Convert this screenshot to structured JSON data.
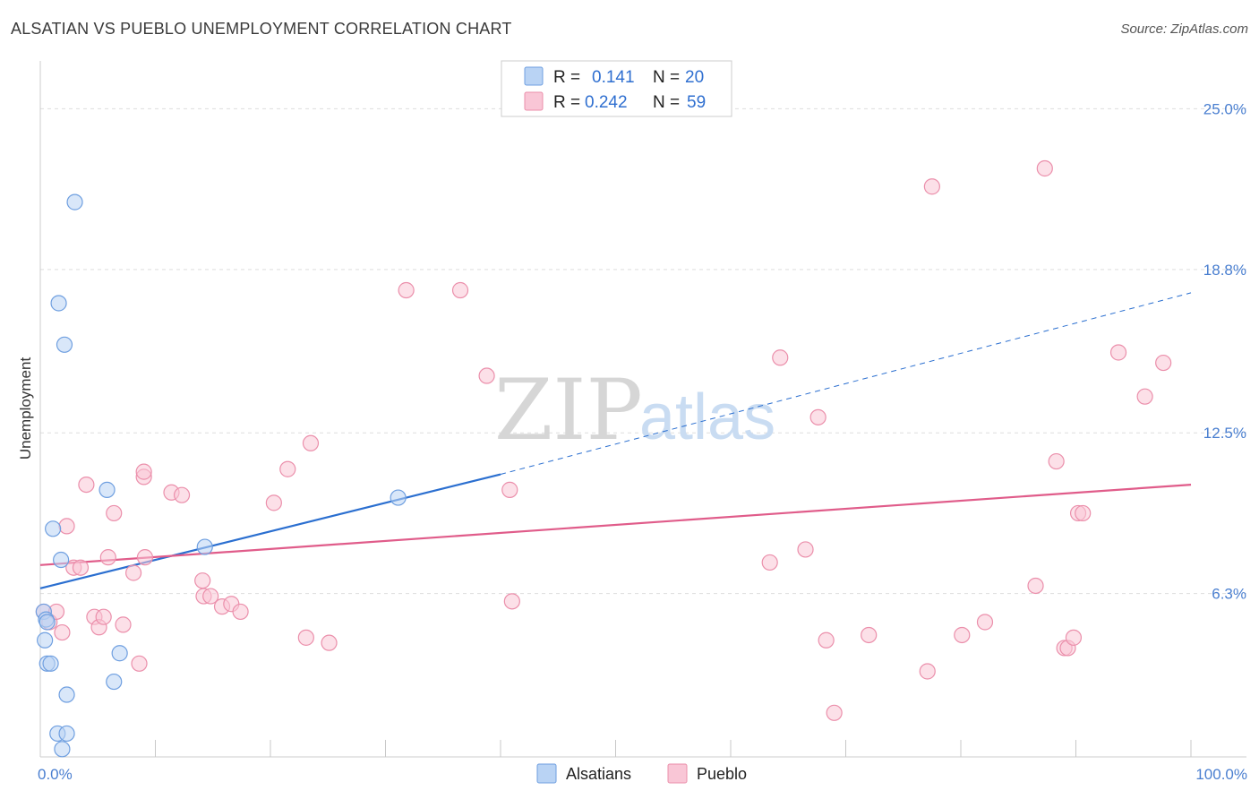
{
  "title": "ALSATIAN VS PUEBLO UNEMPLOYMENT CORRELATION CHART",
  "source": "Source: ZipAtlas.com",
  "watermark": {
    "part1": "ZIP",
    "part2": "atlas"
  },
  "colors": {
    "alsatian_fill": "#b9d3f4",
    "alsatian_stroke": "#6f9fe0",
    "alsatian_line": "#2b6fd0",
    "pueblo_fill": "#f9c6d6",
    "pueblo_stroke": "#eb8fab",
    "pueblo_line": "#e05c8a",
    "grid": "#dddddd",
    "axis": "#cccccc"
  },
  "legend": {
    "rows": [
      {
        "r_label": "R =",
        "r_value": "0.141",
        "n_label": "N =",
        "n_value": "20"
      },
      {
        "r_label": "R =",
        "r_value": "0.242",
        "n_label": "N =",
        "n_value": "59"
      }
    ]
  },
  "chart_data": {
    "type": "scatter",
    "title": "ALSATIAN VS PUEBLO UNEMPLOYMENT CORRELATION CHART",
    "xlabel": "",
    "ylabel": "Unemployment",
    "xlim": [
      0,
      100
    ],
    "ylim": [
      0,
      26.5
    ],
    "x_tick_labels": [
      {
        "value": 0,
        "label": "0.0%"
      },
      {
        "value": 100,
        "label": "100.0%"
      }
    ],
    "y_ticks": [
      {
        "value": 6.3,
        "label": "6.3%"
      },
      {
        "value": 12.5,
        "label": "12.5%"
      },
      {
        "value": 18.8,
        "label": "18.8%"
      },
      {
        "value": 25.0,
        "label": "25.0%"
      }
    ],
    "legend_position": "top-center",
    "series": [
      {
        "name": "Alsatians",
        "r": 0.141,
        "n": 20,
        "points": [
          [
            0.3,
            5.6
          ],
          [
            0.5,
            5.3
          ],
          [
            0.6,
            5.2
          ],
          [
            0.4,
            4.5
          ],
          [
            0.6,
            3.6
          ],
          [
            0.9,
            3.6
          ],
          [
            1.5,
            0.9
          ],
          [
            2.3,
            0.9
          ],
          [
            1.9,
            0.3
          ],
          [
            2.3,
            2.4
          ],
          [
            6.4,
            2.9
          ],
          [
            6.9,
            4.0
          ],
          [
            1.1,
            8.8
          ],
          [
            1.8,
            7.6
          ],
          [
            5.8,
            10.3
          ],
          [
            14.3,
            8.1
          ],
          [
            31.1,
            10.0
          ],
          [
            3.0,
            21.4
          ],
          [
            1.6,
            17.5
          ],
          [
            2.1,
            15.9
          ]
        ],
        "trend": {
          "x0": 0,
          "y0": 6.5,
          "x1": 40,
          "y1": 10.9,
          "dashed_to_x": 100,
          "dashed_to_y": 17.9
        }
      },
      {
        "name": "Pueblo",
        "r": 0.242,
        "n": 59,
        "points": [
          [
            0.3,
            5.6
          ],
          [
            0.8,
            5.2
          ],
          [
            1.4,
            5.6
          ],
          [
            1.9,
            4.8
          ],
          [
            2.3,
            8.9
          ],
          [
            2.9,
            7.3
          ],
          [
            3.5,
            7.3
          ],
          [
            4.0,
            10.5
          ],
          [
            4.7,
            5.4
          ],
          [
            5.1,
            5.0
          ],
          [
            5.5,
            5.4
          ],
          [
            5.9,
            7.7
          ],
          [
            6.4,
            9.4
          ],
          [
            7.2,
            5.1
          ],
          [
            8.1,
            7.1
          ],
          [
            8.6,
            3.6
          ],
          [
            9.1,
            7.7
          ],
          [
            9.0,
            10.8
          ],
          [
            9.0,
            11.0
          ],
          [
            11.4,
            10.2
          ],
          [
            12.3,
            10.1
          ],
          [
            14.1,
            6.8
          ],
          [
            14.2,
            6.2
          ],
          [
            14.8,
            6.2
          ],
          [
            15.8,
            5.8
          ],
          [
            16.6,
            5.9
          ],
          [
            17.4,
            5.6
          ],
          [
            20.3,
            9.8
          ],
          [
            21.5,
            11.1
          ],
          [
            23.1,
            4.6
          ],
          [
            23.5,
            12.1
          ],
          [
            25.1,
            4.4
          ],
          [
            31.8,
            18.0
          ],
          [
            36.5,
            18.0
          ],
          [
            38.8,
            14.7
          ],
          [
            40.8,
            10.3
          ],
          [
            41.0,
            6.0
          ],
          [
            63.4,
            7.5
          ],
          [
            64.3,
            15.4
          ],
          [
            66.5,
            8.0
          ],
          [
            67.6,
            13.1
          ],
          [
            68.3,
            4.5
          ],
          [
            69.0,
            1.7
          ],
          [
            72.0,
            4.7
          ],
          [
            77.1,
            3.3
          ],
          [
            77.5,
            22.0
          ],
          [
            80.1,
            4.7
          ],
          [
            82.1,
            5.2
          ],
          [
            86.5,
            6.6
          ],
          [
            87.3,
            22.7
          ],
          [
            88.3,
            11.4
          ],
          [
            89.0,
            4.2
          ],
          [
            89.3,
            4.2
          ],
          [
            89.8,
            4.6
          ],
          [
            90.2,
            9.4
          ],
          [
            90.6,
            9.4
          ],
          [
            93.7,
            15.6
          ],
          [
            96.0,
            13.9
          ],
          [
            97.6,
            15.2
          ]
        ],
        "trend": {
          "x0": 0,
          "y0": 7.4,
          "x1": 100,
          "y1": 10.5
        }
      }
    ]
  }
}
